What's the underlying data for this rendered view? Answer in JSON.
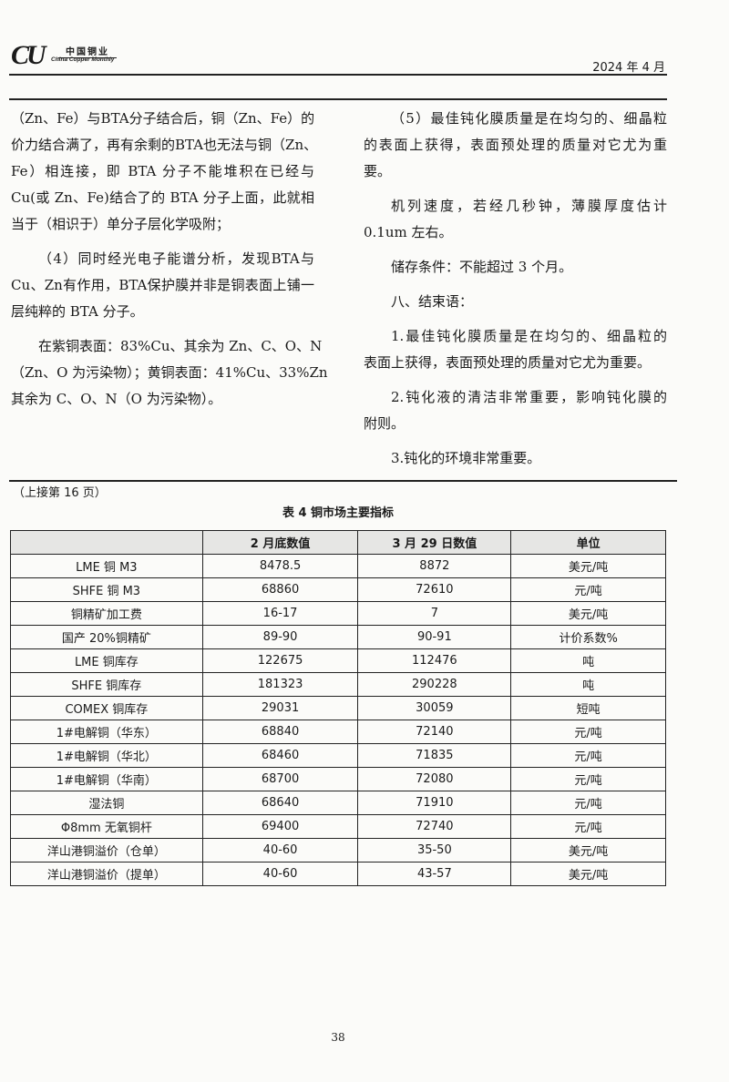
{
  "header": {
    "logo_mark": "CU",
    "logo_cn": "中国铜业",
    "logo_en": "China Copper Monthly",
    "date": "2024 年 4 月"
  },
  "left_column": [
    {
      "indent": false,
      "lines": [
        "（Zn、Fe）与BTA分子结合后，铜（Zn、Fe）的",
        "价力结合满了，再有余剩的BTA也无法与铜（Zn、",
        "Fe）相连接，即 BTA 分子不能堆积在已经与",
        "Cu(或 Zn、Fe)结合了的 BTA 分子上面，此就相",
        "当于（相识于）单分子层化学吸附；"
      ]
    },
    {
      "indent": true,
      "lines": [
        "（4）同时经光电子能谱分析，发现BTA与",
        "Cu、Zn有作用，BTA保护膜并非是铜表面上铺一",
        "层纯粹的 BTA 分子。"
      ]
    },
    {
      "indent": true,
      "lines": [
        "在紫铜表面：83%Cu、其余为 Zn、C、O、N",
        "（Zn、O 为污染物）；黄铜表面：41%Cu、33%Zn",
        "其余为 C、O、N（O 为污染物）。"
      ]
    }
  ],
  "right_column": [
    {
      "indent": true,
      "lines": [
        "（5）最佳钝化膜质量是在均匀的、细晶粒",
        "的表面上获得，表面预处理的质量对它尤为重",
        "要。"
      ]
    },
    {
      "indent": true,
      "lines": [
        "机列速度，若经几秒钟，薄膜厚度估计",
        "0.1um 左右。"
      ]
    },
    {
      "indent": true,
      "lines": [
        "储存条件：不能超过 3 个月。"
      ]
    },
    {
      "indent": true,
      "lines": [
        "八、结束语："
      ]
    },
    {
      "indent": true,
      "lines": [
        "1.最佳钝化膜质量是在均匀的、细晶粒的",
        "表面上获得，表面预处理的质量对它尤为重要。"
      ]
    },
    {
      "indent": true,
      "lines": [
        "2.钝化液的清洁非常重要，影响钝化膜的",
        "附则。"
      ]
    },
    {
      "indent": true,
      "lines": [
        "3.钝化的环境非常重要。"
      ]
    }
  ],
  "continued": "（上接第 16 页）",
  "table": {
    "title": "表 4 铜市场主要指标",
    "headers": [
      "",
      "2 月底数值",
      "3 月 29 日数值",
      "单位"
    ],
    "rows": [
      [
        "LME 铜 M3",
        "8478.5",
        "8872",
        "美元/吨"
      ],
      [
        "SHFE 铜 M3",
        "68860",
        "72610",
        "元/吨"
      ],
      [
        "铜精矿加工费",
        "16-17",
        "7",
        "美元/吨"
      ],
      [
        "国产 20%铜精矿",
        "89-90",
        "90-91",
        "计价系数%"
      ],
      [
        "LME 铜库存",
        "122675",
        "112476",
        "吨"
      ],
      [
        "SHFE 铜库存",
        "181323",
        "290228",
        "吨"
      ],
      [
        "COMEX 铜库存",
        "29031",
        "30059",
        "短吨"
      ],
      [
        "1#电解铜（华东）",
        "68840",
        "72140",
        "元/吨"
      ],
      [
        "1#电解铜（华北）",
        "68460",
        "71835",
        "元/吨"
      ],
      [
        "1#电解铜（华南）",
        "68700",
        "72080",
        "元/吨"
      ],
      [
        "湿法铜",
        "68640",
        "71910",
        "元/吨"
      ],
      [
        "Φ8mm 无氧铜杆",
        "69400",
        "72740",
        "元/吨"
      ],
      [
        "洋山港铜溢价（仓单）",
        "40-60",
        "35-50",
        "美元/吨"
      ],
      [
        "洋山港铜溢价（提单）",
        "40-60",
        "43-57",
        "美元/吨"
      ]
    ]
  },
  "page_number": "38"
}
